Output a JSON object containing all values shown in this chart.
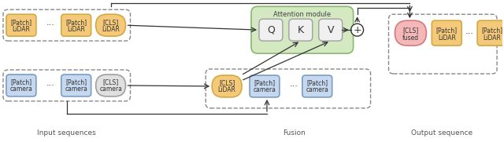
{
  "figsize": [
    6.4,
    1.81
  ],
  "dpi": 100,
  "bg_color": "#ffffff",
  "colors": {
    "lidar_fill": "#f5c97a",
    "lidar_edge": "#d4a843",
    "camera_fill": "#c5d8f0",
    "camera_edge": "#7a9ec0",
    "cls_lidar_fill": "#f5c97a",
    "cls_lidar_edge": "#d4a843",
    "cls_camera_fill": "#e0e0e0",
    "cls_camera_edge": "#a0a0a0",
    "cls_fused_fill": "#f5b8b8",
    "cls_fused_edge": "#d47a7a",
    "attention_bg": "#d4e8c2",
    "attention_edge": "#8ab870",
    "qkv_fill": "#f0f0f0",
    "qkv_edge": "#a0a0a0",
    "dashed_box_edge": "#666666",
    "arrow_color": "#333333",
    "text_color": "#333333",
    "plus_circle_fill": "#ffffff",
    "plus_circle_edge": "#333333"
  },
  "labels": {
    "input_sequences": "Input sequences",
    "fusion": "Fusion",
    "output_sequence": "Output sequence",
    "attention_module": "Attention module"
  }
}
